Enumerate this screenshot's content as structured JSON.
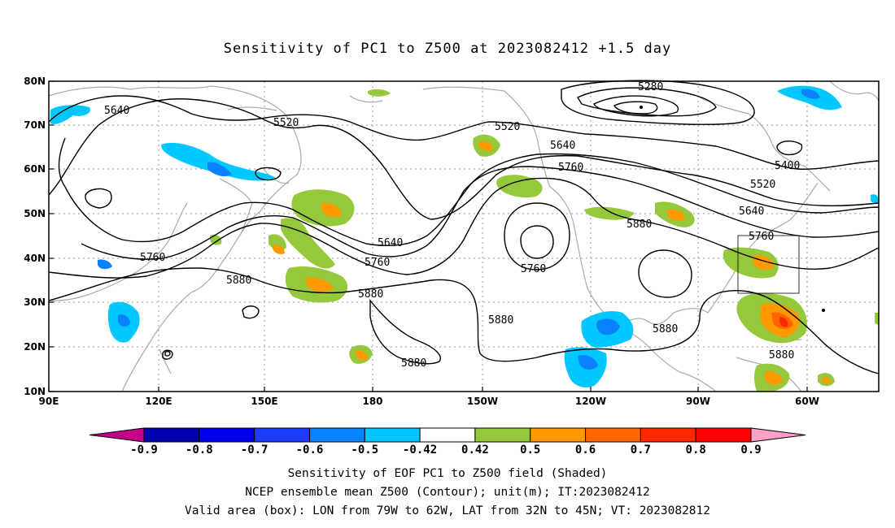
{
  "title": "Sensitivity of PC1 to Z500 at 2023082412 +1.5 day",
  "lat_ticks": [
    "80N",
    "70N",
    "60N",
    "50N",
    "40N",
    "30N",
    "20N",
    "10N"
  ],
  "lon_ticks": [
    "90E",
    "120E",
    "150E",
    "180",
    "150W",
    "120W",
    "90W",
    "60W"
  ],
  "contour_labels": [
    "5640",
    "5520",
    "5280",
    "5520",
    "5640",
    "5760",
    "5400",
    "5520",
    "5640",
    "5760",
    "5640",
    "5760",
    "5880",
    "5760",
    "5880",
    "5880",
    "5760",
    "5880",
    "5880",
    "5880",
    "5880"
  ],
  "colorbar": {
    "labels": [
      "-0.9",
      "-0.8",
      "-0.7",
      "-0.6",
      "-0.5",
      "-0.42",
      "0.42",
      "0.5",
      "0.6",
      "0.7",
      "0.8",
      "0.9"
    ],
    "colors": [
      "#c4008a",
      "#0000b0",
      "#0000f0",
      "#1e3cff",
      "#0a82ff",
      "#00c8ff",
      "#ffffff",
      "#96c83c",
      "#ff9900",
      "#ff6600",
      "#ff2800",
      "#ff0000",
      "#ffa0c8"
    ]
  },
  "captions": {
    "line1": "Sensitivity of EOF PC1 to Z500 field (Shaded)",
    "line2": "NCEP ensemble mean Z500 (Contour); unit(m); IT:2023082412",
    "line3": "Valid area (box): LON from 79W to 62W, LAT from 32N to 45N; VT: 2023082812"
  }
}
